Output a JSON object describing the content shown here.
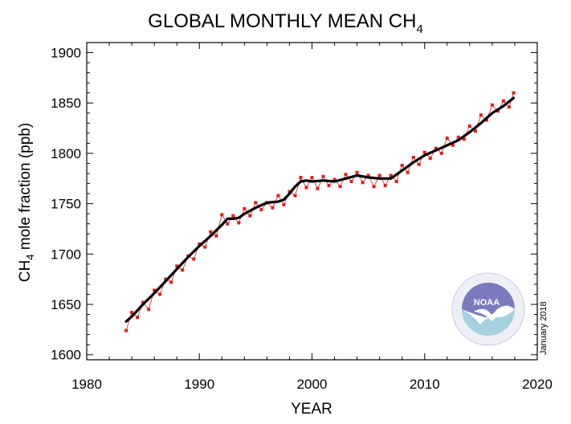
{
  "chart_data": {
    "type": "line",
    "title": "GLOBAL MONTHLY MEAN CH",
    "title_subscript": "4",
    "xlabel": "YEAR",
    "ylabel_prefix": "CH",
    "ylabel_subscript": "4",
    "ylabel_suffix": " mole fraction (ppb)",
    "xlim": [
      1980,
      2020
    ],
    "ylim": [
      1595,
      1910
    ],
    "x_ticks": [
      1980,
      1990,
      2000,
      2010,
      2020
    ],
    "y_ticks": [
      1600,
      1650,
      1700,
      1750,
      1800,
      1850,
      1900
    ],
    "grid": false,
    "annotation": "January 2018",
    "logo": {
      "name": "noaa-logo",
      "text": "NOAA",
      "colors": [
        "#6f6fb6",
        "#9dc6d8"
      ]
    },
    "series": [
      {
        "style": "monthly-points",
        "color": "#e31a1c",
        "x": [
          1983.5,
          1984.0,
          1984.5,
          1985.0,
          1985.5,
          1986.0,
          1986.5,
          1987.0,
          1987.5,
          1988.0,
          1988.5,
          1989.0,
          1989.5,
          1990.0,
          1990.5,
          1991.0,
          1991.5,
          1992.0,
          1992.5,
          1993.0,
          1993.5,
          1994.0,
          1994.5,
          1995.0,
          1995.5,
          1996.0,
          1996.5,
          1997.0,
          1997.5,
          1998.0,
          1998.5,
          1999.0,
          1999.5,
          2000.0,
          2000.5,
          2001.0,
          2001.5,
          2002.0,
          2002.5,
          2003.0,
          2003.5,
          2004.0,
          2004.5,
          2005.0,
          2005.5,
          2006.0,
          2006.5,
          2007.0,
          2007.5,
          2008.0,
          2008.5,
          2009.0,
          2009.5,
          2010.0,
          2010.5,
          2011.0,
          2011.5,
          2012.0,
          2012.5,
          2013.0,
          2013.5,
          2014.0,
          2014.5,
          2015.0,
          2015.5,
          2016.0,
          2016.5,
          2017.0,
          2017.5,
          2017.9
        ],
        "y": [
          1624,
          1642,
          1637,
          1652,
          1645,
          1664,
          1660,
          1675,
          1672,
          1688,
          1684,
          1698,
          1695,
          1710,
          1707,
          1722,
          1718,
          1739,
          1730,
          1738,
          1731,
          1745,
          1738,
          1751,
          1744,
          1751,
          1746,
          1758,
          1749,
          1762,
          1758,
          1776,
          1766,
          1776,
          1765,
          1777,
          1768,
          1774,
          1767,
          1779,
          1772,
          1781,
          1771,
          1778,
          1767,
          1778,
          1768,
          1778,
          1772,
          1788,
          1781,
          1796,
          1789,
          1801,
          1795,
          1805,
          1800,
          1815,
          1808,
          1816,
          1814,
          1827,
          1822,
          1838,
          1833,
          1848,
          1842,
          1852,
          1846,
          1860
        ]
      },
      {
        "style": "trend-line",
        "color": "#000000",
        "x": [
          1983.5,
          1984.0,
          1985.0,
          1986.0,
          1987.0,
          1988.0,
          1989.0,
          1990.0,
          1991.0,
          1992.0,
          1992.5,
          1993.0,
          1993.5,
          1994.0,
          1995.0,
          1996.0,
          1997.0,
          1997.5,
          1998.0,
          1998.5,
          1999.0,
          1999.5,
          2000.0,
          2001.0,
          2002.0,
          2003.0,
          2004.0,
          2005.0,
          2006.0,
          2007.0,
          2008.0,
          2009.0,
          2010.0,
          2011.0,
          2012.0,
          2013.0,
          2014.0,
          2015.0,
          2016.0,
          2017.0,
          2017.9
        ],
        "y": [
          1633,
          1638,
          1650,
          1661,
          1673,
          1685,
          1697,
          1708,
          1718,
          1729,
          1735,
          1735,
          1736,
          1740,
          1746,
          1751,
          1752,
          1754,
          1760,
          1767,
          1772,
          1773,
          1772,
          1773,
          1772,
          1775,
          1778,
          1776,
          1775,
          1775,
          1783,
          1791,
          1798,
          1803,
          1808,
          1813,
          1821,
          1830,
          1840,
          1847,
          1855
        ]
      }
    ]
  }
}
